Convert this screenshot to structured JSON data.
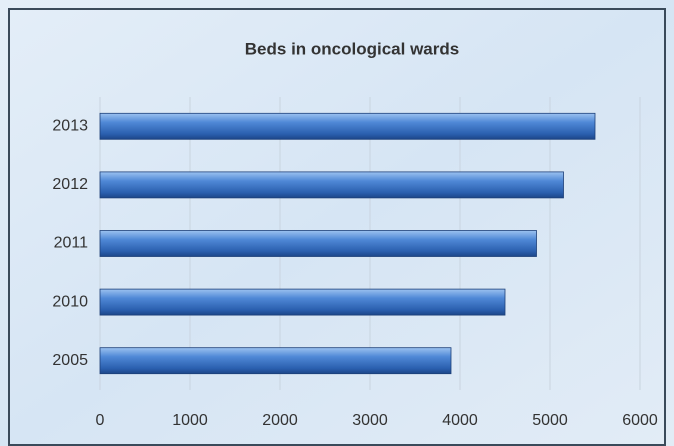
{
  "chart_data": {
    "type": "bar",
    "orientation": "horizontal",
    "title": "Beds in oncological wards",
    "categories": [
      "2005",
      "2010",
      "2011",
      "2012",
      "2013"
    ],
    "values": [
      3900,
      4500,
      4850,
      5150,
      5500
    ],
    "color": "#3f78c8",
    "xlim": [
      0,
      6000
    ],
    "xticks": [
      0,
      1000,
      2000,
      3000,
      4000,
      5000,
      6000
    ],
    "grid": true
  }
}
